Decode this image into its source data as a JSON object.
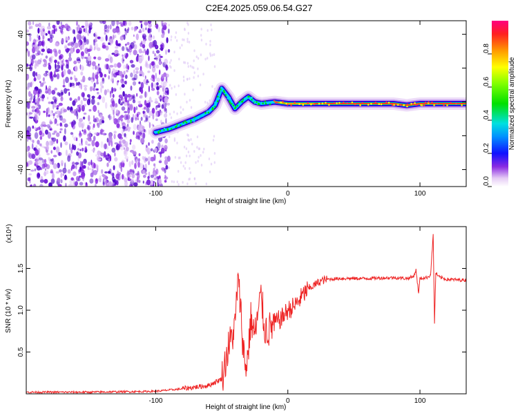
{
  "title": "C2E4.2025.059.06.54.G27",
  "chart_data": [
    {
      "type": "heatmap",
      "xlabel": "Height of straight line (km)",
      "ylabel": "Frequency (Hz)",
      "xlim": [
        -198,
        135
      ],
      "ylim": [
        -50,
        48
      ],
      "x_ticks": [
        "-100",
        "0",
        "100"
      ],
      "y_ticks": [
        "-40",
        "-20",
        "0",
        "20",
        "40"
      ],
      "colorbar": {
        "label": "Normalized spectral amplitude",
        "range": [
          0,
          1
        ],
        "ticks": [
          "0.0",
          "0.2",
          "0.4",
          "0.6",
          "0.8"
        ]
      },
      "trace": {
        "x": [
          -100,
          -90,
          -80,
          -70,
          -60,
          -55,
          -50,
          -45,
          -40,
          -35,
          -30,
          -25,
          -20,
          -10,
          0,
          20,
          40,
          60,
          80,
          90,
          100,
          110,
          135
        ],
        "y": [
          -18,
          -16,
          -13,
          -10,
          -6,
          -2,
          8,
          3,
          -4,
          0,
          3,
          0,
          -1,
          0,
          -1,
          -1,
          -1,
          -1,
          -1,
          -2,
          -1,
          -1,
          -1
        ]
      }
    },
    {
      "type": "line",
      "xlabel": "Height of straight line (km)",
      "ylabel": "SNR (10 * v/v)",
      "y_multiplier": "(x10⁴)",
      "xlim": [
        -198,
        135
      ],
      "ylim": [
        0,
        2
      ],
      "x_ticks": [
        "-100",
        "0",
        "100"
      ],
      "y_ticks": [
        "0.5",
        "1.0",
        "1.5"
      ],
      "color": "#ee2222",
      "series": [
        {
          "x": [
            -198,
            -150,
            -100,
            -80,
            -70,
            -60,
            -50,
            -45,
            -40,
            -38,
            -36,
            -34,
            -32,
            -30,
            -28,
            -25,
            -22,
            -20,
            -18,
            -15,
            -10,
            -5,
            0,
            5,
            10,
            15,
            20,
            25,
            30,
            40,
            60,
            80,
            90,
            95,
            97,
            99,
            100,
            105,
            108,
            110,
            111,
            112,
            114,
            120,
            135
          ],
          "y": [
            0.02,
            0.02,
            0.03,
            0.06,
            0.08,
            0.1,
            0.18,
            0.55,
            0.8,
            1.35,
            1.1,
            0.6,
            0.3,
            0.5,
            0.9,
            0.7,
            1.0,
            1.2,
            0.8,
            0.75,
            0.85,
            0.9,
            1.0,
            1.05,
            1.15,
            1.25,
            1.3,
            1.35,
            1.37,
            1.38,
            1.38,
            1.39,
            1.38,
            1.4,
            1.48,
            1.2,
            1.38,
            1.39,
            1.42,
            1.9,
            0.85,
            1.45,
            1.4,
            1.37,
            1.36
          ]
        }
      ]
    }
  ]
}
